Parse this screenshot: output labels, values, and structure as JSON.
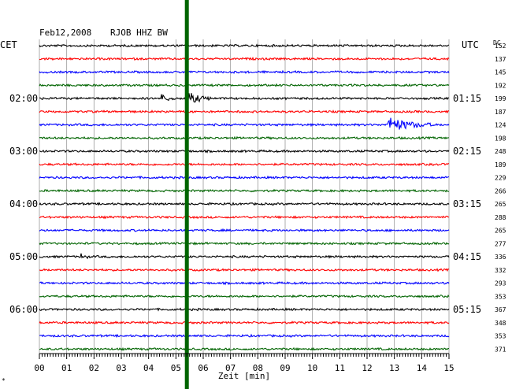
{
  "header": {
    "date": "Feb12,2008",
    "station": "RJOB HHZ BW",
    "left_zone": "CET",
    "right_zone": "UTC",
    "dc_label": "DC"
  },
  "chart_data": {
    "type": "line",
    "xlabel": "Zeit [min]",
    "xlim": [
      0,
      15
    ],
    "x_ticks": [
      "00",
      "01",
      "02",
      "03",
      "04",
      "05",
      "06",
      "07",
      "08",
      "09",
      "10",
      "11",
      "12",
      "13",
      "14",
      "15"
    ],
    "trace_colors": [
      "#000000",
      "#ff0000",
      "#0000ff",
      "#006400"
    ],
    "cet_labels": [
      {
        "trace": 4,
        "label": "02:00"
      },
      {
        "trace": 8,
        "label": "03:00"
      },
      {
        "trace": 12,
        "label": "04:00"
      },
      {
        "trace": 16,
        "label": "05:00"
      },
      {
        "trace": 20,
        "label": "06:00"
      }
    ],
    "utc_labels": [
      {
        "trace": 4,
        "label": "01:15"
      },
      {
        "trace": 8,
        "label": "02:15"
      },
      {
        "trace": 12,
        "label": "03:15"
      },
      {
        "trace": 16,
        "label": "04:15"
      },
      {
        "trace": 20,
        "label": "05:15"
      }
    ],
    "dc_offsets": [
      "152",
      "137",
      "145",
      "192",
      "199",
      "187",
      "124",
      "198",
      "248",
      "189",
      "229",
      "266",
      "265",
      "288",
      "265",
      "277",
      "336",
      "332",
      "293",
      "353",
      "367",
      "348",
      "353",
      "371"
    ],
    "marker_line_minute": 5.4,
    "marker_color": "#006400",
    "events": [
      {
        "trace": 4,
        "minute": 4.5,
        "amplitude": 0.45,
        "duration": 0.5
      },
      {
        "trace": 4,
        "minute": 5.4,
        "amplitude": 0.9,
        "duration": 0.9
      },
      {
        "trace": 6,
        "minute": 12.8,
        "amplitude": 1.0,
        "duration": 1.6
      },
      {
        "trace": 16,
        "minute": 1.55,
        "amplitude": 0.35,
        "duration": 0.3
      }
    ]
  }
}
